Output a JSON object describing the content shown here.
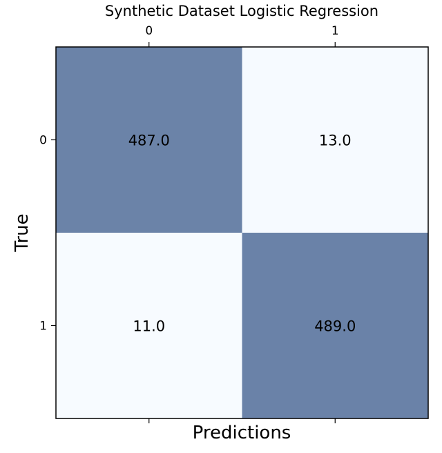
{
  "chart_data": {
    "type": "heatmap",
    "title": "Synthetic Dataset Logistic Regression",
    "xlabel": "Predictions",
    "ylabel": "True",
    "x_categories": [
      "0",
      "1"
    ],
    "y_categories": [
      "0",
      "1"
    ],
    "x_tick_position": "top",
    "values": [
      [
        487.0,
        13.0
      ],
      [
        11.0,
        489.0
      ]
    ],
    "value_labels": [
      [
        "487.0",
        "13.0"
      ],
      [
        "11.0",
        "489.0"
      ]
    ],
    "colormap": {
      "low_color": "#f7fbff",
      "high_color": "#6a82a8"
    },
    "value_range": [
      11.0,
      489.0
    ],
    "grid": false,
    "legend": "none"
  }
}
